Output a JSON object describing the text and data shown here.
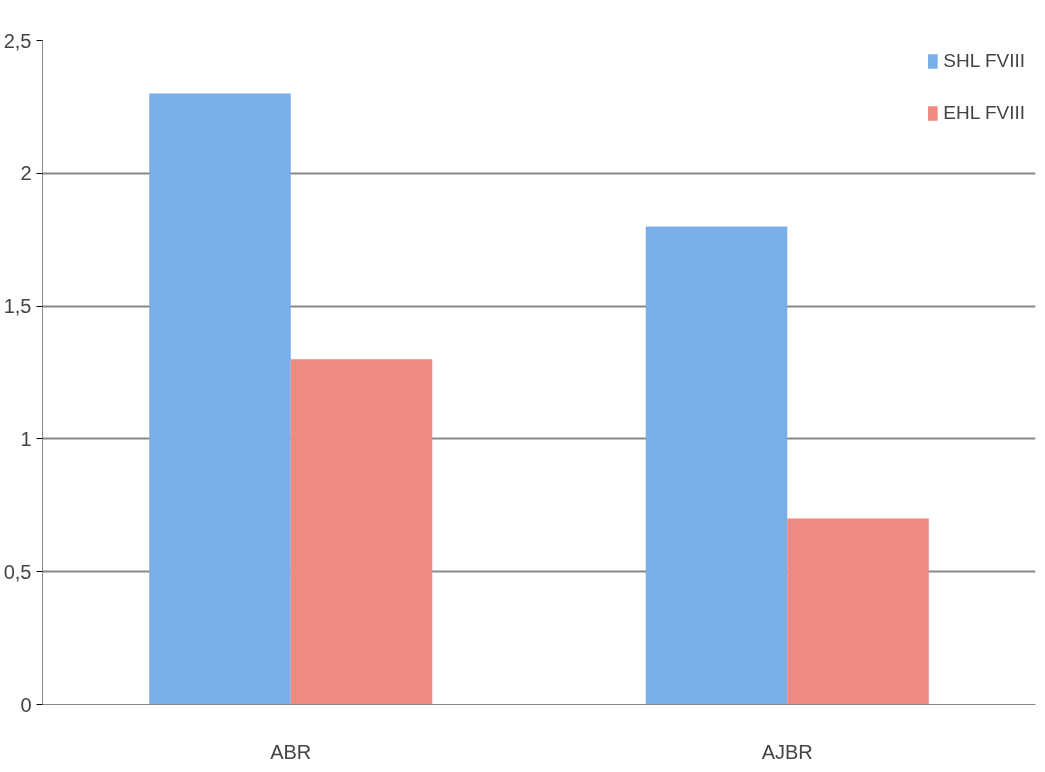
{
  "chart_data": {
    "type": "bar",
    "categories": [
      "ABR",
      "AJBR"
    ],
    "series": [
      {
        "name": "SHL FVIII",
        "color": "#7aaee8",
        "values": [
          2.3,
          1.8
        ]
      },
      {
        "name": "EHL FVIII",
        "color": "#ee8a80",
        "values": [
          1.3,
          0.7
        ]
      }
    ],
    "ylim": [
      0,
      2.5
    ],
    "yticks": [
      0,
      {
        "value": 0.5,
        "label": "0,5"
      },
      1,
      {
        "value": 1.5,
        "label": "1,5"
      },
      2,
      {
        "value": 2.5,
        "label": "2,5"
      }
    ],
    "grid": "y",
    "legend": "top right"
  }
}
